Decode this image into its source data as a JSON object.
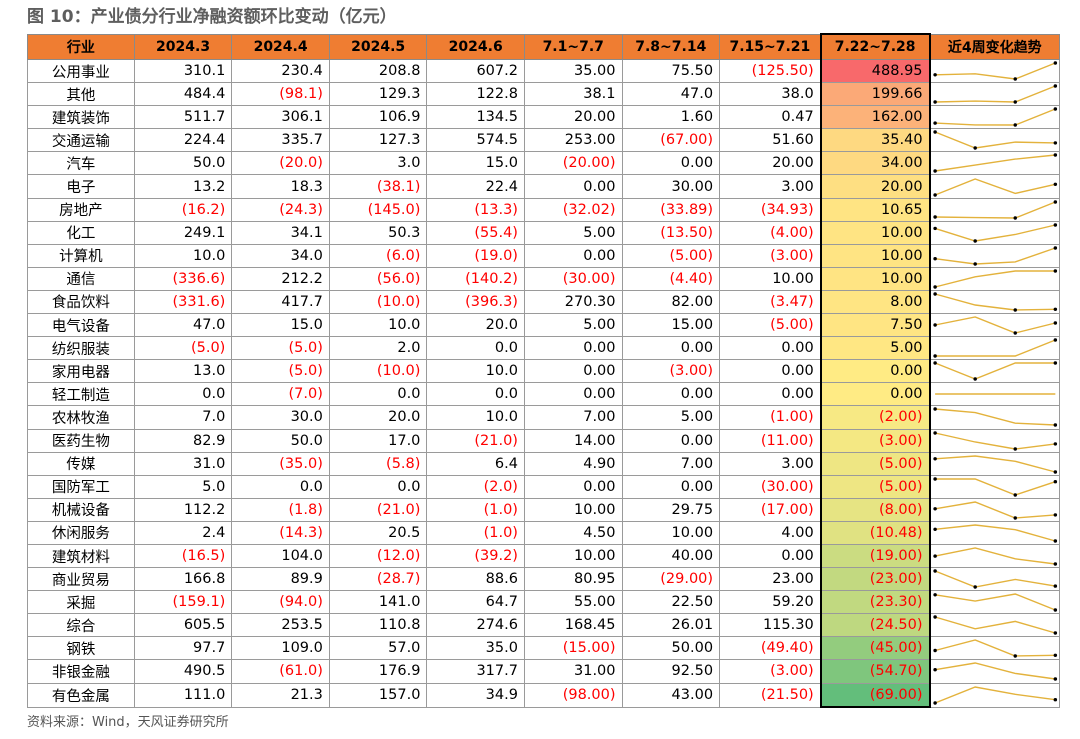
{
  "title": "图 10：产业债分行业净融资额环比变动（亿元）",
  "source": "资料来源：Wind，天风证券研究所",
  "colors": {
    "header": "#ef7d32",
    "negative": "#ff0000",
    "trend_line": "#e3b23c",
    "heat_high": "#f8696b",
    "heat_mid": "#ffeb84",
    "heat_low": "#63be7b"
  },
  "headers": [
    "行业",
    "2024.3",
    "2024.4",
    "2024.5",
    "2024.6",
    "7.1~7.7",
    "7.8~7.14",
    "7.15~7.21",
    "7.22~7.28",
    "近4周变化趋势"
  ],
  "rows": [
    {
      "name": "公用事业",
      "cells": [
        "310.1",
        "230.4",
        "208.8",
        "607.2",
        "35.00",
        "75.50",
        "(125.50)",
        "488.95"
      ],
      "trend": [
        35.0,
        75.5,
        -125.5,
        488.95
      ]
    },
    {
      "name": "其他",
      "cells": [
        "484.4",
        "(98.1)",
        "129.3",
        "122.8",
        "38.1",
        "47.0",
        "38.0",
        "199.66"
      ],
      "trend": [
        38.1,
        47.0,
        38.0,
        199.66
      ]
    },
    {
      "name": "建筑装饰",
      "cells": [
        "511.7",
        "306.1",
        "106.9",
        "134.5",
        "20.00",
        "1.60",
        "0.47",
        "162.00"
      ],
      "trend": [
        20.0,
        1.6,
        0.47,
        162.0
      ]
    },
    {
      "name": "交通运输",
      "cells": [
        "224.4",
        "335.7",
        "127.3",
        "574.5",
        "253.00",
        "(67.00)",
        "51.60",
        "35.40"
      ],
      "trend": [
        253.0,
        -67.0,
        51.6,
        35.4
      ]
    },
    {
      "name": "汽车",
      "cells": [
        "50.0",
        "(20.0)",
        "3.0",
        "15.0",
        "(20.00)",
        "0.00",
        "20.00",
        "34.00"
      ],
      "trend": [
        -20.0,
        0.0,
        20.0,
        34.0
      ]
    },
    {
      "name": "电子",
      "cells": [
        "13.2",
        "18.3",
        "(38.1)",
        "22.4",
        "0.00",
        "30.00",
        "3.00",
        "20.00"
      ],
      "trend": [
        0.0,
        30.0,
        3.0,
        20.0
      ]
    },
    {
      "name": "房地产",
      "cells": [
        "(16.2)",
        "(24.3)",
        "(145.0)",
        "(13.3)",
        "(32.02)",
        "(33.89)",
        "(34.93)",
        "10.65"
      ],
      "trend": [
        -32.02,
        -33.89,
        -34.93,
        10.65
      ]
    },
    {
      "name": "化工",
      "cells": [
        "249.1",
        "34.1",
        "50.3",
        "(55.4)",
        "5.00",
        "(13.50)",
        "(4.00)",
        "10.00"
      ],
      "trend": [
        5.0,
        -13.5,
        -4.0,
        10.0
      ]
    },
    {
      "name": "计算机",
      "cells": [
        "10.0",
        "34.0",
        "(6.0)",
        "(19.0)",
        "0.00",
        "(5.00)",
        "(3.00)",
        "10.00"
      ],
      "trend": [
        0.0,
        -5.0,
        -3.0,
        10.0
      ]
    },
    {
      "name": "通信",
      "cells": [
        "(336.6)",
        "212.2",
        "(56.0)",
        "(140.2)",
        "(30.00)",
        "(4.40)",
        "10.00",
        "10.00"
      ],
      "trend": [
        -30.0,
        -4.4,
        10.0,
        10.0
      ]
    },
    {
      "name": "食品饮料",
      "cells": [
        "(331.6)",
        "417.7",
        "(10.0)",
        "(396.3)",
        "270.30",
        "82.00",
        "(3.47)",
        "8.00"
      ],
      "trend": [
        270.3,
        82.0,
        -3.47,
        8.0
      ]
    },
    {
      "name": "电气设备",
      "cells": [
        "47.0",
        "15.0",
        "10.0",
        "20.0",
        "5.00",
        "15.00",
        "(5.00)",
        "7.50"
      ],
      "trend": [
        5.0,
        15.0,
        -5.0,
        7.5
      ]
    },
    {
      "name": "纺织服装",
      "cells": [
        "(5.0)",
        "(5.0)",
        "2.0",
        "0.0",
        "0.00",
        "0.00",
        "0.00",
        "5.00"
      ],
      "trend": [
        0.0,
        0.0,
        0.0,
        5.0
      ]
    },
    {
      "name": "家用电器",
      "cells": [
        "13.0",
        "(5.0)",
        "(10.0)",
        "10.0",
        "0.00",
        "(3.00)",
        "0.00",
        "0.00"
      ],
      "trend": [
        0.0,
        -3.0,
        0.0,
        0.0
      ]
    },
    {
      "name": "轻工制造",
      "cells": [
        "0.0",
        "(7.0)",
        "0.0",
        "0.0",
        "0.00",
        "0.00",
        "0.00",
        "0.00"
      ],
      "trend": [
        0.0,
        0.0,
        0.0,
        0.0
      ]
    },
    {
      "name": "农林牧渔",
      "cells": [
        "7.0",
        "30.0",
        "20.0",
        "10.0",
        "7.00",
        "5.00",
        "(1.00)",
        "(2.00)"
      ],
      "trend": [
        7.0,
        5.0,
        -1.0,
        -2.0
      ]
    },
    {
      "name": "医药生物",
      "cells": [
        "82.9",
        "50.0",
        "17.0",
        "(21.0)",
        "14.00",
        "0.00",
        "(11.00)",
        "(3.00)"
      ],
      "trend": [
        14.0,
        0.0,
        -11.0,
        -3.0
      ]
    },
    {
      "name": "传媒",
      "cells": [
        "31.0",
        "(35.0)",
        "(5.8)",
        "6.4",
        "4.90",
        "7.00",
        "3.00",
        "(5.00)"
      ],
      "trend": [
        4.9,
        7.0,
        3.0,
        -5.0
      ]
    },
    {
      "name": "国防军工",
      "cells": [
        "5.0",
        "0.0",
        "0.0",
        "(2.0)",
        "0.00",
        "0.00",
        "(30.00)",
        "(5.00)"
      ],
      "trend": [
        0.0,
        0.0,
        -30.0,
        -5.0
      ]
    },
    {
      "name": "机械设备",
      "cells": [
        "112.2",
        "(1.8)",
        "(21.0)",
        "(1.0)",
        "10.00",
        "29.75",
        "(17.00)",
        "(8.00)"
      ],
      "trend": [
        10.0,
        29.75,
        -17.0,
        -8.0
      ]
    },
    {
      "name": "休闲服务",
      "cells": [
        "2.4",
        "(14.3)",
        "20.5",
        "(1.0)",
        "4.50",
        "10.00",
        "4.00",
        "(10.48)"
      ],
      "trend": [
        4.5,
        10.0,
        4.0,
        -10.48
      ]
    },
    {
      "name": "建筑材料",
      "cells": [
        "(16.5)",
        "104.0",
        "(12.0)",
        "(39.2)",
        "10.00",
        "40.00",
        "0.00",
        "(19.00)"
      ],
      "trend": [
        10.0,
        40.0,
        0.0,
        -19.0
      ]
    },
    {
      "name": "商业贸易",
      "cells": [
        "166.8",
        "89.9",
        "(28.7)",
        "88.6",
        "80.95",
        "(29.00)",
        "23.00",
        "(23.00)"
      ],
      "trend": [
        80.95,
        -29.0,
        23.0,
        -23.0
      ]
    },
    {
      "name": "采掘",
      "cells": [
        "(159.1)",
        "(94.0)",
        "141.0",
        "64.7",
        "55.00",
        "22.50",
        "59.20",
        "(23.30)"
      ],
      "trend": [
        55.0,
        22.5,
        59.2,
        -23.3
      ]
    },
    {
      "name": "综合",
      "cells": [
        "605.5",
        "253.5",
        "110.8",
        "274.6",
        "168.45",
        "26.01",
        "115.30",
        "(24.50)"
      ],
      "trend": [
        168.45,
        26.01,
        115.3,
        -24.5
      ]
    },
    {
      "name": "钢铁",
      "cells": [
        "97.7",
        "109.0",
        "57.0",
        "35.0",
        "(15.00)",
        "50.00",
        "(49.40)",
        "(45.00)"
      ],
      "trend": [
        -15.0,
        50.0,
        -49.4,
        -45.0
      ]
    },
    {
      "name": "非银金融",
      "cells": [
        "490.5",
        "(61.0)",
        "176.9",
        "317.7",
        "31.00",
        "92.50",
        "(3.00)",
        "(54.70)"
      ],
      "trend": [
        31.0,
        92.5,
        -3.0,
        -54.7
      ]
    },
    {
      "name": "有色金属",
      "cells": [
        "111.0",
        "21.3",
        "157.0",
        "34.9",
        "(98.00)",
        "43.00",
        "(21.50)",
        "(69.00)"
      ],
      "trend": [
        -98.0,
        43.0,
        -21.5,
        -69.0
      ]
    }
  ]
}
